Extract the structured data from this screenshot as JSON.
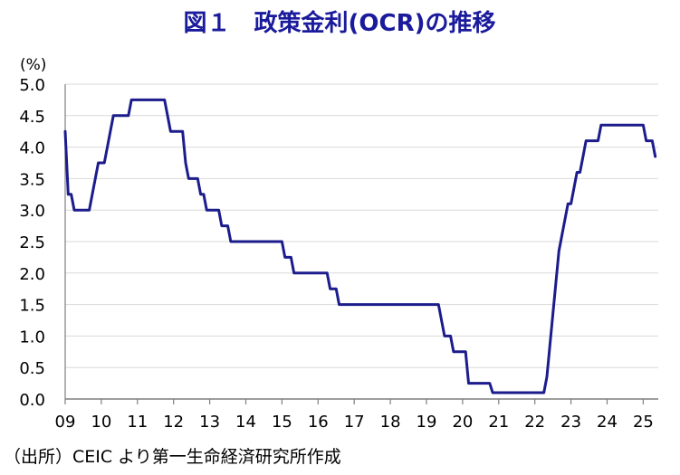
{
  "chart_data": {
    "type": "line",
    "title": "図１　政策金利(OCR)の推移",
    "ylabel": "(%)",
    "ylim": [
      0,
      5
    ],
    "xlim": [
      "2009-01",
      "2025-06"
    ],
    "grid": true,
    "yticks": [
      "0.0",
      "0.5",
      "1.0",
      "1.5",
      "2.0",
      "2.5",
      "3.0",
      "3.5",
      "4.0",
      "4.5",
      "5.0"
    ],
    "xticks": [
      {
        "label": "09",
        "value": "2009-01"
      },
      {
        "label": "10",
        "value": "2010-01"
      },
      {
        "label": "11",
        "value": "2011-01"
      },
      {
        "label": "12",
        "value": "2012-01"
      },
      {
        "label": "13",
        "value": "2013-01"
      },
      {
        "label": "14",
        "value": "2014-01"
      },
      {
        "label": "15",
        "value": "2015-01"
      },
      {
        "label": "16",
        "value": "2016-01"
      },
      {
        "label": "17",
        "value": "2017-01"
      },
      {
        "label": "18",
        "value": "2018-01"
      },
      {
        "label": "19",
        "value": "2019-01"
      },
      {
        "label": "20",
        "value": "2020-01"
      },
      {
        "label": "21",
        "value": "2021-01"
      },
      {
        "label": "22",
        "value": "2022-01"
      },
      {
        "label": "23",
        "value": "2023-01"
      },
      {
        "label": "24",
        "value": "2024-01"
      },
      {
        "label": "25",
        "value": "2025-01"
      }
    ],
    "x": [
      "2009-01",
      "2009-02",
      "2009-03",
      "2009-04",
      "2009-05",
      "2009-06",
      "2009-07",
      "2009-08",
      "2009-09",
      "2009-10",
      "2009-11",
      "2009-12",
      "2010-01",
      "2010-02",
      "2010-03",
      "2010-04",
      "2010-05",
      "2010-06",
      "2010-07",
      "2010-08",
      "2010-09",
      "2010-10",
      "2010-11",
      "2010-12",
      "2011-01",
      "2011-02",
      "2011-03",
      "2011-04",
      "2011-05",
      "2011-06",
      "2011-07",
      "2011-08",
      "2011-09",
      "2011-10",
      "2011-11",
      "2011-12",
      "2012-01",
      "2012-02",
      "2012-03",
      "2012-04",
      "2012-05",
      "2012-06",
      "2012-07",
      "2012-08",
      "2012-09",
      "2012-10",
      "2012-11",
      "2012-12",
      "2013-01",
      "2013-02",
      "2013-03",
      "2013-04",
      "2013-05",
      "2013-06",
      "2013-07",
      "2013-08",
      "2013-09",
      "2013-10",
      "2013-11",
      "2013-12",
      "2014-01",
      "2014-02",
      "2014-03",
      "2014-04",
      "2014-05",
      "2014-06",
      "2014-07",
      "2014-08",
      "2014-09",
      "2014-10",
      "2014-11",
      "2014-12",
      "2015-01",
      "2015-02",
      "2015-03",
      "2015-04",
      "2015-05",
      "2015-06",
      "2015-07",
      "2015-08",
      "2015-09",
      "2015-10",
      "2015-11",
      "2015-12",
      "2016-01",
      "2016-02",
      "2016-03",
      "2016-04",
      "2016-05",
      "2016-06",
      "2016-07",
      "2016-08",
      "2016-09",
      "2016-10",
      "2016-11",
      "2016-12",
      "2017-01",
      "2017-02",
      "2017-03",
      "2017-04",
      "2017-05",
      "2017-06",
      "2017-07",
      "2017-08",
      "2017-09",
      "2017-10",
      "2017-11",
      "2017-12",
      "2018-01",
      "2018-02",
      "2018-03",
      "2018-04",
      "2018-05",
      "2018-06",
      "2018-07",
      "2018-08",
      "2018-09",
      "2018-10",
      "2018-11",
      "2018-12",
      "2019-01",
      "2019-02",
      "2019-03",
      "2019-04",
      "2019-05",
      "2019-06",
      "2019-07",
      "2019-08",
      "2019-09",
      "2019-10",
      "2019-11",
      "2019-12",
      "2020-01",
      "2020-02",
      "2020-03",
      "2020-04",
      "2020-05",
      "2020-06",
      "2020-07",
      "2020-08",
      "2020-09",
      "2020-10",
      "2020-11",
      "2020-12",
      "2021-01",
      "2021-02",
      "2021-03",
      "2021-04",
      "2021-05",
      "2021-06",
      "2021-07",
      "2021-08",
      "2021-09",
      "2021-10",
      "2021-11",
      "2021-12",
      "2022-01",
      "2022-02",
      "2022-03",
      "2022-04",
      "2022-05",
      "2022-06",
      "2022-07",
      "2022-08",
      "2022-09",
      "2022-10",
      "2022-11",
      "2022-12",
      "2023-01",
      "2023-02",
      "2023-03",
      "2023-04",
      "2023-05",
      "2023-06",
      "2023-07",
      "2023-08",
      "2023-09",
      "2023-10",
      "2023-11",
      "2023-12",
      "2024-01",
      "2024-02",
      "2024-03",
      "2024-04",
      "2024-05",
      "2024-06",
      "2024-07",
      "2024-08",
      "2024-09",
      "2024-10",
      "2024-11",
      "2024-12",
      "2025-01",
      "2025-02",
      "2025-03",
      "2025-04",
      "2025-05"
    ],
    "series": [
      {
        "values": [
          4.25,
          3.25,
          3.25,
          3.0,
          3.0,
          3.0,
          3.0,
          3.0,
          3.0,
          3.25,
          3.5,
          3.75,
          3.75,
          3.75,
          4.0,
          4.25,
          4.5,
          4.5,
          4.5,
          4.5,
          4.5,
          4.5,
          4.75,
          4.75,
          4.75,
          4.75,
          4.75,
          4.75,
          4.75,
          4.75,
          4.75,
          4.75,
          4.75,
          4.75,
          4.5,
          4.25,
          4.25,
          4.25,
          4.25,
          4.25,
          3.75,
          3.5,
          3.5,
          3.5,
          3.5,
          3.25,
          3.25,
          3.0,
          3.0,
          3.0,
          3.0,
          3.0,
          2.75,
          2.75,
          2.75,
          2.5,
          2.5,
          2.5,
          2.5,
          2.5,
          2.5,
          2.5,
          2.5,
          2.5,
          2.5,
          2.5,
          2.5,
          2.5,
          2.5,
          2.5,
          2.5,
          2.5,
          2.5,
          2.25,
          2.25,
          2.25,
          2.0,
          2.0,
          2.0,
          2.0,
          2.0,
          2.0,
          2.0,
          2.0,
          2.0,
          2.0,
          2.0,
          2.0,
          1.75,
          1.75,
          1.75,
          1.5,
          1.5,
          1.5,
          1.5,
          1.5,
          1.5,
          1.5,
          1.5,
          1.5,
          1.5,
          1.5,
          1.5,
          1.5,
          1.5,
          1.5,
          1.5,
          1.5,
          1.5,
          1.5,
          1.5,
          1.5,
          1.5,
          1.5,
          1.5,
          1.5,
          1.5,
          1.5,
          1.5,
          1.5,
          1.5,
          1.5,
          1.5,
          1.5,
          1.5,
          1.25,
          1.0,
          1.0,
          1.0,
          0.75,
          0.75,
          0.75,
          0.75,
          0.75,
          0.25,
          0.25,
          0.25,
          0.25,
          0.25,
          0.25,
          0.25,
          0.25,
          0.1,
          0.1,
          0.1,
          0.1,
          0.1,
          0.1,
          0.1,
          0.1,
          0.1,
          0.1,
          0.1,
          0.1,
          0.1,
          0.1,
          0.1,
          0.1,
          0.1,
          0.1,
          0.35,
          0.85,
          1.35,
          1.85,
          2.35,
          2.6,
          2.85,
          3.1,
          3.1,
          3.35,
          3.6,
          3.6,
          3.85,
          4.1,
          4.1,
          4.1,
          4.1,
          4.1,
          4.35,
          4.35,
          4.35,
          4.35,
          4.35,
          4.35,
          4.35,
          4.35,
          4.35,
          4.35,
          4.35,
          4.35,
          4.35,
          4.35,
          4.35,
          4.1,
          4.1,
          4.1,
          3.85
        ]
      }
    ]
  },
  "source": "（出所）CEIC より第一生命経済研究所作成",
  "colors": {
    "title": "#1a1a9c",
    "line": "#1c1c8c",
    "grid": "#d9d9d9",
    "axis": "#7f7f7f"
  }
}
